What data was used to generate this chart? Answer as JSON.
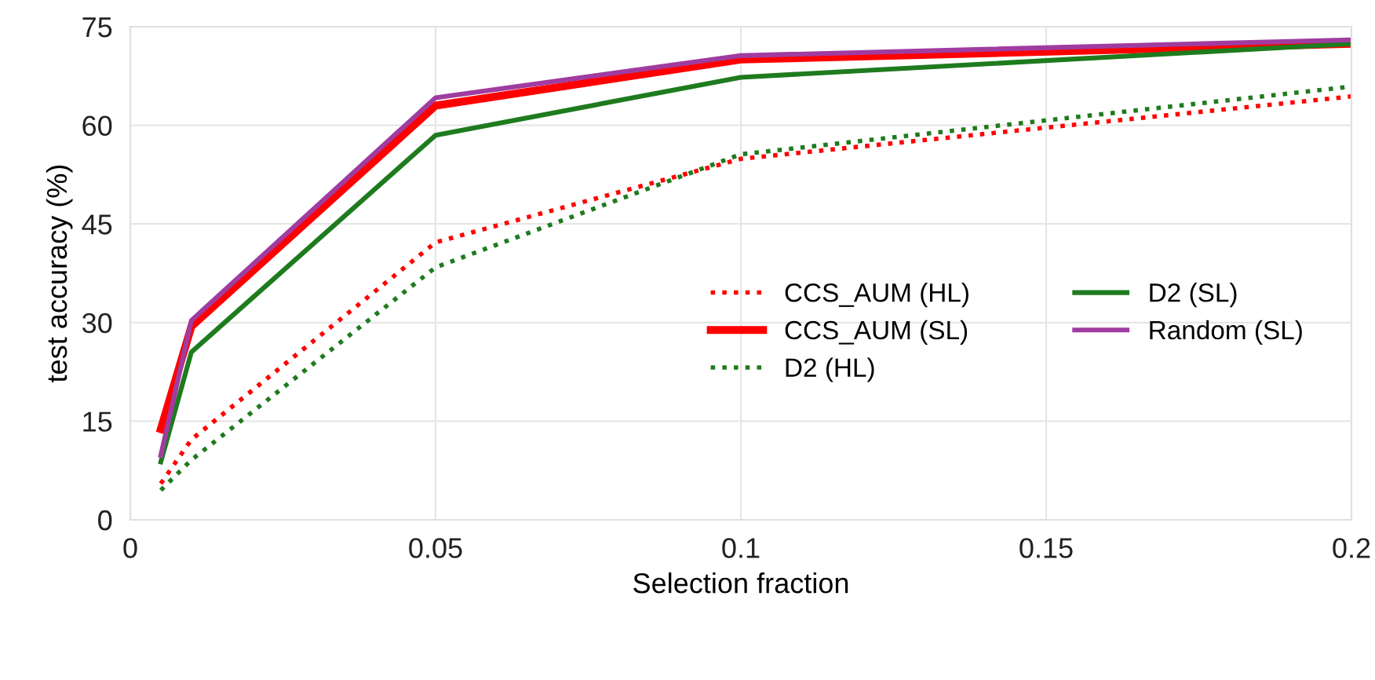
{
  "chart_data": {
    "type": "line",
    "xlabel": "Selection fraction",
    "ylabel": "test accuracy (%)",
    "x": [
      0.005,
      0.01,
      0.05,
      0.1,
      0.2
    ],
    "series": [
      {
        "name": "CCS_AUM (HL)",
        "color": "#ff0000",
        "line_style": "dotted",
        "values": [
          5.5,
          12.2,
          42.2,
          54.9,
          64.4
        ]
      },
      {
        "name": "CCS_AUM (SL)",
        "color": "#ff0000",
        "line_style": "solid",
        "values": [
          13.8,
          29.4,
          63.0,
          70.0,
          72.4
        ]
      },
      {
        "name": "D2 (HL)",
        "color": "#1e7b1e",
        "line_style": "dotted",
        "values": [
          4.5,
          9.1,
          38.4,
          55.6,
          65.9
        ]
      },
      {
        "name": "D2 (SL)",
        "color": "#1e7b1e",
        "line_style": "solid",
        "values": [
          8.8,
          25.5,
          58.5,
          67.3,
          72.4
        ]
      },
      {
        "name": "Random (SL)",
        "color": "#a03ca0",
        "line_style": "solid",
        "values": [
          9.8,
          30.3,
          64.2,
          70.6,
          73.0
        ]
      }
    ],
    "xlim": [
      0,
      0.2
    ],
    "xticks": [
      0,
      0.05,
      0.1,
      0.15,
      0.2
    ],
    "ylim": [
      0,
      75
    ],
    "yticks": [
      0,
      15,
      30,
      45,
      60,
      75
    ],
    "grid": true,
    "legend": "right"
  }
}
